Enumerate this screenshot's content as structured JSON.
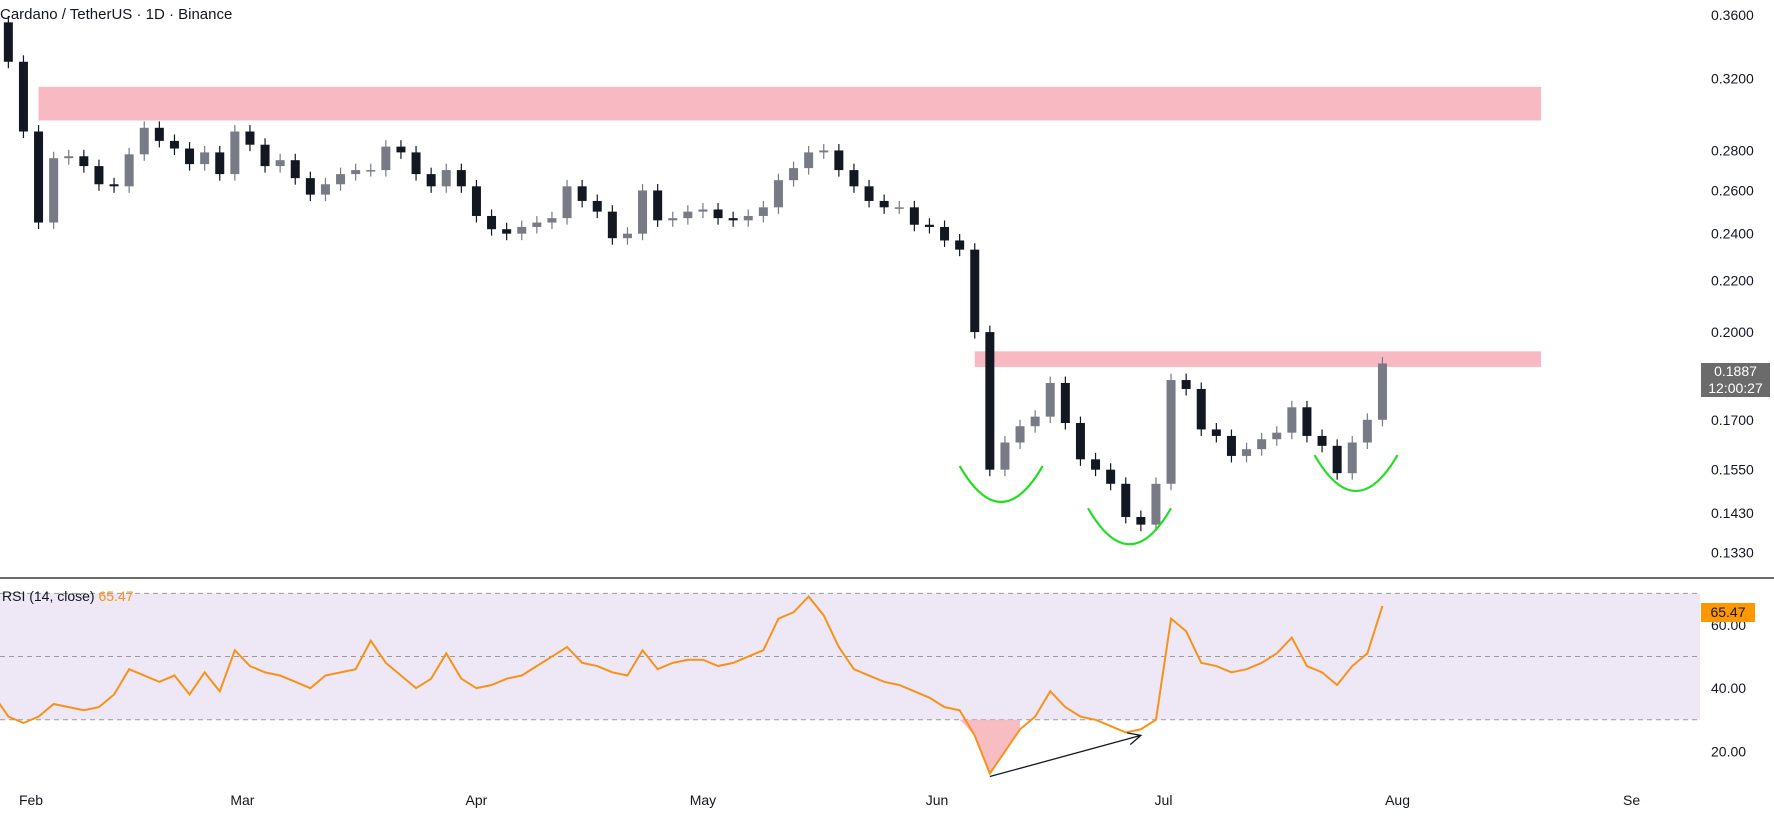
{
  "header": {
    "symbol": "Cardano",
    "quote": "TetherUS",
    "interval": "1D",
    "exchange": "Binance",
    "title": "Cardano / TetherUS · 1D · Binance"
  },
  "last_price": {
    "price": "0.1887",
    "countdown": "12:00:27"
  },
  "rsi": {
    "label": "RSI (14, close)",
    "value": "65.47",
    "levels": [
      70,
      50,
      30
    ]
  },
  "colors": {
    "up_candle": "#787b86",
    "down_candle": "#131722",
    "resistance_zone": "#f8b9c2",
    "rsi_line": "#f7931a",
    "rsi_band": "#ede7f6",
    "cup_arcs": "#22dd22",
    "price_tag": "#6b6b6b",
    "rsi_tag": "#ff9800"
  },
  "chart_data": [
    {
      "type": "candlestick",
      "title": "Cardano / TetherUS · 1D · Binance",
      "x_ticks": [
        "Feb",
        "Mar",
        "Apr",
        "May",
        "Jun",
        "Jul",
        "Aug",
        "Se"
      ],
      "y_ticks": [
        "0.3600",
        "0.3200",
        "0.2800",
        "0.2600",
        "0.2400",
        "0.2200",
        "0.2000",
        "0.1700",
        "0.1550",
        "0.1430",
        "0.1330"
      ],
      "y_scale": "log",
      "ylim": [
        0.128,
        0.37
      ],
      "grid": false,
      "series": [
        {
          "name": "Close",
          "path": [
            [
              "2023-01-27",
              0.355
            ],
            [
              "2023-01-29",
              0.33
            ],
            [
              "2023-01-31",
              0.29
            ],
            [
              "2023-02-02",
              0.245
            ],
            [
              "2023-02-04",
              0.276
            ],
            [
              "2023-02-06",
              0.277
            ],
            [
              "2023-02-08",
              0.272
            ],
            [
              "2023-02-10",
              0.263
            ],
            [
              "2023-02-12",
              0.262
            ],
            [
              "2023-02-14",
              0.278
            ],
            [
              "2023-02-16",
              0.292
            ],
            [
              "2023-02-18",
              0.285
            ],
            [
              "2023-02-20",
              0.281
            ],
            [
              "2023-02-22",
              0.273
            ],
            [
              "2023-02-24",
              0.279
            ],
            [
              "2023-02-26",
              0.268
            ],
            [
              "2023-02-28",
              0.29
            ],
            [
              "2023-03-02",
              0.283
            ],
            [
              "2023-03-04",
              0.272
            ],
            [
              "2023-03-06",
              0.275
            ],
            [
              "2023-03-08",
              0.266
            ],
            [
              "2023-03-10",
              0.258
            ],
            [
              "2023-03-12",
              0.263
            ],
            [
              "2023-03-14",
              0.268
            ],
            [
              "2023-03-16",
              0.27
            ],
            [
              "2023-03-18",
              0.27
            ],
            [
              "2023-03-20",
              0.282
            ],
            [
              "2023-03-22",
              0.279
            ],
            [
              "2023-03-24",
              0.268
            ],
            [
              "2023-03-26",
              0.262
            ],
            [
              "2023-03-28",
              0.27
            ],
            [
              "2023-03-30",
              0.262
            ],
            [
              "2023-04-01",
              0.248
            ],
            [
              "2023-04-03",
              0.242
            ],
            [
              "2023-04-05",
              0.24
            ],
            [
              "2023-04-07",
              0.243
            ],
            [
              "2023-04-09",
              0.245
            ],
            [
              "2023-04-11",
              0.247
            ],
            [
              "2023-04-13",
              0.262
            ],
            [
              "2023-04-15",
              0.255
            ],
            [
              "2023-04-17",
              0.25
            ],
            [
              "2023-04-19",
              0.238
            ],
            [
              "2023-04-21",
              0.24
            ],
            [
              "2023-04-23",
              0.26
            ],
            [
              "2023-04-25",
              0.246
            ],
            [
              "2023-04-27",
              0.247
            ],
            [
              "2023-04-29",
              0.25
            ],
            [
              "2023-05-01",
              0.251
            ],
            [
              "2023-05-03",
              0.247
            ],
            [
              "2023-05-05",
              0.246
            ],
            [
              "2023-05-07",
              0.248
            ],
            [
              "2023-05-09",
              0.252
            ],
            [
              "2023-05-11",
              0.265
            ],
            [
              "2023-05-13",
              0.271
            ],
            [
              "2023-05-15",
              0.279
            ],
            [
              "2023-05-17",
              0.28
            ],
            [
              "2023-05-19",
              0.27
            ],
            [
              "2023-05-21",
              0.262
            ],
            [
              "2023-05-23",
              0.255
            ],
            [
              "2023-05-25",
              0.252
            ],
            [
              "2023-05-27",
              0.252
            ],
            [
              "2023-05-29",
              0.244
            ],
            [
              "2023-05-31",
              0.243
            ],
            [
              "2023-06-02",
              0.237
            ],
            [
              "2023-06-04",
              0.233
            ],
            [
              "2023-06-06",
              0.2
            ],
            [
              "2023-06-08",
              0.155
            ],
            [
              "2023-06-10",
              0.163
            ],
            [
              "2023-06-12",
              0.168
            ],
            [
              "2023-06-14",
              0.171
            ],
            [
              "2023-06-16",
              0.182
            ],
            [
              "2023-06-18",
              0.169
            ],
            [
              "2023-06-20",
              0.158
            ],
            [
              "2023-06-22",
              0.155
            ],
            [
              "2023-06-24",
              0.151
            ],
            [
              "2023-06-26",
              0.142
            ],
            [
              "2023-06-28",
              0.14
            ],
            [
              "2023-06-30",
              0.151
            ],
            [
              "2023-07-02",
              0.183
            ],
            [
              "2023-07-04",
              0.18
            ],
            [
              "2023-07-06",
              0.167
            ],
            [
              "2023-07-08",
              0.165
            ],
            [
              "2023-07-10",
              0.159
            ],
            [
              "2023-07-12",
              0.161
            ],
            [
              "2023-07-14",
              0.164
            ],
            [
              "2023-07-16",
              0.166
            ],
            [
              "2023-07-18",
              0.174
            ],
            [
              "2023-07-20",
              0.165
            ],
            [
              "2023-07-22",
              0.162
            ],
            [
              "2023-07-24",
              0.154
            ],
            [
              "2023-07-26",
              0.163
            ],
            [
              "2023-07-28",
              0.17
            ],
            [
              "2023-07-30",
              0.1887
            ]
          ]
        }
      ],
      "annotations": [
        {
          "text": "resistance zone",
          "kind": "shaded_band",
          "y_range": [
            0.296,
            0.315
          ],
          "x_range": [
            "2023-02-02",
            "2023-08-20"
          ]
        },
        {
          "text": "resistance zone",
          "kind": "shaded_band",
          "y_range": [
            0.1875,
            0.193
          ],
          "x_range": [
            "2023-06-06",
            "2023-08-20"
          ]
        },
        {
          "text": "left shoulder",
          "kind": "arc",
          "x_range": [
            "2023-06-04",
            "2023-06-15"
          ],
          "bottom": 0.146
        },
        {
          "text": "head",
          "kind": "arc",
          "x_range": [
            "2023-06-21",
            "2023-07-02"
          ],
          "bottom": 0.135
        },
        {
          "text": "right shoulder",
          "kind": "arc",
          "x_range": [
            "2023-07-21",
            "2023-08-01"
          ],
          "bottom": 0.149
        }
      ]
    },
    {
      "type": "line",
      "title": "RSI (14, close)",
      "x_ticks": [
        "Feb",
        "Mar",
        "Apr",
        "May",
        "Jun",
        "Jul",
        "Aug",
        "Se"
      ],
      "y_ticks": [
        "60.00",
        "40.00",
        "20.00"
      ],
      "ylim": [
        10,
        72
      ],
      "reference_lines": [
        70,
        50,
        30
      ],
      "shaded_band": [
        30,
        70
      ],
      "series": [
        {
          "name": "RSI (14, close)",
          "path": [
            [
              "2023-01-27",
              38
            ],
            [
              "2023-01-29",
              31
            ],
            [
              "2023-01-31",
              29
            ],
            [
              "2023-02-02",
              31
            ],
            [
              "2023-02-04",
              35
            ],
            [
              "2023-02-06",
              34
            ],
            [
              "2023-02-08",
              33
            ],
            [
              "2023-02-10",
              34
            ],
            [
              "2023-02-12",
              38
            ],
            [
              "2023-02-14",
              46
            ],
            [
              "2023-02-16",
              44
            ],
            [
              "2023-02-18",
              42
            ],
            [
              "2023-02-20",
              44
            ],
            [
              "2023-02-22",
              38
            ],
            [
              "2023-02-24",
              45
            ],
            [
              "2023-02-26",
              39
            ],
            [
              "2023-02-28",
              52
            ],
            [
              "2023-03-02",
              47
            ],
            [
              "2023-03-04",
              45
            ],
            [
              "2023-03-06",
              44
            ],
            [
              "2023-03-08",
              42
            ],
            [
              "2023-03-10",
              40
            ],
            [
              "2023-03-12",
              44
            ],
            [
              "2023-03-14",
              45
            ],
            [
              "2023-03-16",
              46
            ],
            [
              "2023-03-18",
              55
            ],
            [
              "2023-03-20",
              48
            ],
            [
              "2023-03-22",
              44
            ],
            [
              "2023-03-24",
              40
            ],
            [
              "2023-03-26",
              43
            ],
            [
              "2023-03-28",
              51
            ],
            [
              "2023-03-30",
              43
            ],
            [
              "2023-04-01",
              40
            ],
            [
              "2023-04-03",
              41
            ],
            [
              "2023-04-05",
              43
            ],
            [
              "2023-04-07",
              44
            ],
            [
              "2023-04-09",
              47
            ],
            [
              "2023-04-11",
              50
            ],
            [
              "2023-04-13",
              53
            ],
            [
              "2023-04-15",
              48
            ],
            [
              "2023-04-17",
              47
            ],
            [
              "2023-04-19",
              45
            ],
            [
              "2023-04-21",
              44
            ],
            [
              "2023-04-23",
              52
            ],
            [
              "2023-04-25",
              46
            ],
            [
              "2023-04-27",
              48
            ],
            [
              "2023-04-29",
              49
            ],
            [
              "2023-05-01",
              49
            ],
            [
              "2023-05-03",
              47
            ],
            [
              "2023-05-05",
              48
            ],
            [
              "2023-05-07",
              50
            ],
            [
              "2023-05-09",
              52
            ],
            [
              "2023-05-11",
              62
            ],
            [
              "2023-05-13",
              64
            ],
            [
              "2023-05-15",
              69
            ],
            [
              "2023-05-17",
              63
            ],
            [
              "2023-05-19",
              53
            ],
            [
              "2023-05-21",
              46
            ],
            [
              "2023-05-23",
              44
            ],
            [
              "2023-05-25",
              42
            ],
            [
              "2023-05-27",
              41
            ],
            [
              "2023-05-29",
              39
            ],
            [
              "2023-05-31",
              37
            ],
            [
              "2023-06-02",
              34
            ],
            [
              "2023-06-04",
              33
            ],
            [
              "2023-06-06",
              25
            ],
            [
              "2023-06-08",
              13
            ],
            [
              "2023-06-10",
              20
            ],
            [
              "2023-06-12",
              27
            ],
            [
              "2023-06-14",
              31
            ],
            [
              "2023-06-16",
              39
            ],
            [
              "2023-06-18",
              34
            ],
            [
              "2023-06-20",
              31
            ],
            [
              "2023-06-22",
              30
            ],
            [
              "2023-06-24",
              28
            ],
            [
              "2023-06-26",
              26
            ],
            [
              "2023-06-28",
              27
            ],
            [
              "2023-06-30",
              30
            ],
            [
              "2023-07-02",
              62
            ],
            [
              "2023-07-04",
              58
            ],
            [
              "2023-07-06",
              48
            ],
            [
              "2023-07-08",
              47
            ],
            [
              "2023-07-10",
              45
            ],
            [
              "2023-07-12",
              46
            ],
            [
              "2023-07-14",
              48
            ],
            [
              "2023-07-16",
              51
            ],
            [
              "2023-07-18",
              56
            ],
            [
              "2023-07-20",
              47
            ],
            [
              "2023-07-22",
              45
            ],
            [
              "2023-07-24",
              41
            ],
            [
              "2023-07-26",
              47
            ],
            [
              "2023-07-28",
              51
            ],
            [
              "2023-07-30",
              66
            ]
          ]
        }
      ],
      "annotations": [
        {
          "text": "oversold fill",
          "kind": "shaded_area",
          "below": 30,
          "x_range": [
            "2023-06-04",
            "2023-06-12"
          ]
        },
        {
          "text": "bullish divergence",
          "kind": "arrow",
          "from": [
            "2023-06-08",
            13
          ],
          "to": [
            "2023-06-28",
            26
          ]
        }
      ]
    }
  ]
}
